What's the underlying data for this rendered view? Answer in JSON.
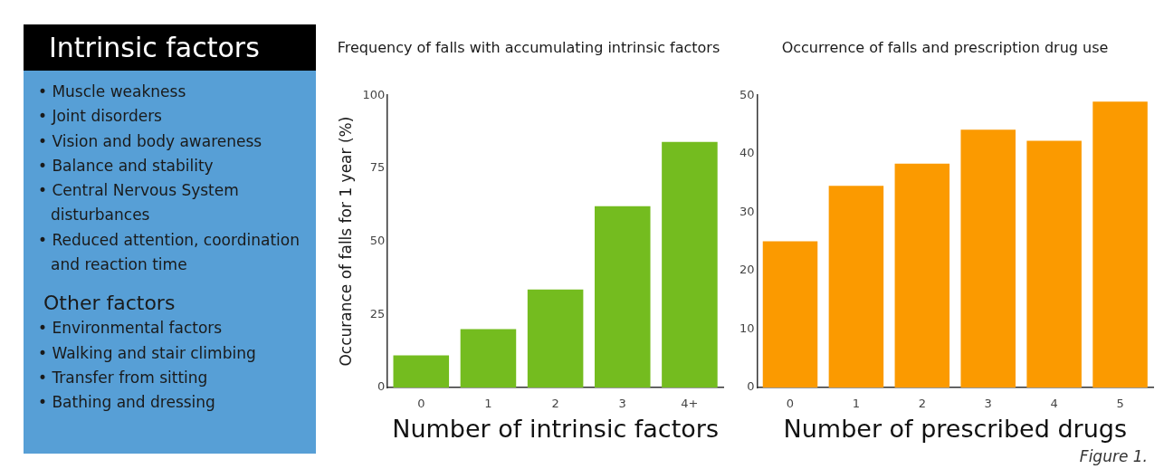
{
  "chart_data": [
    {
      "type": "other",
      "title": "Intrinsic factors",
      "annotations": [
        "• Muscle weakness",
        "• Joint disorders",
        "• Vision and body awareness",
        "• Balance and stability",
        "• Central Nervous System disturbances",
        "• Reduced attention, coordination and reaction time"
      ]
    },
    {
      "type": "other",
      "title": "Other factors",
      "annotations": [
        "• Environmental factors",
        "• Walking and stair climbing",
        "• Transfer from sitting",
        "• Bathing and dressing"
      ]
    },
    {
      "type": "bar",
      "title": "Frequency of falls with accumulating intrinsic factors",
      "xlabel": "Number of intrinsic factors",
      "ylabel": "Occurance of falls for 1 year (%)",
      "categories": [
        "0",
        "1",
        "2",
        "3",
        "4+"
      ],
      "values": [
        11,
        20,
        33.5,
        62,
        84
      ],
      "color": "#74bc1f",
      "ylim": [
        0,
        100
      ],
      "yticks": [
        0,
        25,
        50,
        75,
        100
      ]
    },
    {
      "type": "bar",
      "title": "Occurrence of falls and prescription drug use",
      "xlabel": "Number of prescribed drugs",
      "categories": [
        "0",
        "1",
        "2",
        "3",
        "4",
        "5"
      ],
      "values": [
        25,
        34.5,
        38.3,
        44.1,
        42.2,
        48.9
      ],
      "color": "#fb9a00",
      "ylim": [
        0,
        50
      ],
      "yticks": [
        0,
        10,
        20,
        30,
        40,
        50
      ],
      "annotations": [
        "Figure 1."
      ]
    }
  ]
}
